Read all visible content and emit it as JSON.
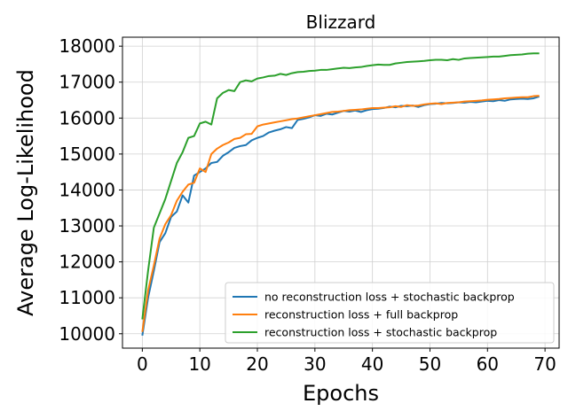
{
  "chart_data": {
    "type": "line",
    "title": "Blizzard",
    "xlabel": "Epochs",
    "ylabel": "Average Log-Likelihood",
    "xlim": [
      -3.45,
      72.45
    ],
    "ylim": [
      9600,
      18250
    ],
    "xticks": [
      0,
      10,
      20,
      30,
      40,
      50,
      60,
      70
    ],
    "yticks": [
      10000,
      11000,
      12000,
      13000,
      14000,
      15000,
      16000,
      17000,
      18000
    ],
    "grid": true,
    "legend_position": "lower-right",
    "x": [
      0,
      1,
      2,
      3,
      4,
      5,
      6,
      7,
      8,
      9,
      10,
      11,
      12,
      13,
      14,
      15,
      16,
      17,
      18,
      19,
      20,
      21,
      22,
      23,
      24,
      25,
      26,
      27,
      28,
      29,
      30,
      31,
      32,
      33,
      34,
      35,
      36,
      37,
      38,
      39,
      40,
      41,
      42,
      43,
      44,
      45,
      46,
      47,
      48,
      49,
      50,
      51,
      52,
      53,
      54,
      55,
      56,
      57,
      58,
      59,
      60,
      61,
      62,
      63,
      64,
      65,
      66,
      67,
      68,
      69
    ],
    "series": [
      {
        "name": "no reconstruction loss + stochastic backprop",
        "color": "#1f77b4",
        "values": [
          9950,
          11000,
          11750,
          12550,
          12800,
          13250,
          13400,
          13850,
          13650,
          14400,
          14500,
          14600,
          14750,
          14780,
          14950,
          15050,
          15170,
          15220,
          15250,
          15380,
          15450,
          15500,
          15600,
          15650,
          15690,
          15750,
          15720,
          15950,
          15980,
          16020,
          16080,
          16060,
          16120,
          16100,
          16150,
          16200,
          16180,
          16210,
          16170,
          16220,
          16250,
          16260,
          16280,
          16320,
          16300,
          16340,
          16330,
          16350,
          16310,
          16360,
          16390,
          16400,
          16420,
          16410,
          16420,
          16440,
          16430,
          16450,
          16440,
          16460,
          16480,
          16470,
          16500,
          16480,
          16520,
          16530,
          16540,
          16530,
          16550,
          16600
        ]
      },
      {
        "name": "reconstruction loss + full backprop",
        "color": "#ff7f0e",
        "values": [
          10050,
          11200,
          11900,
          12650,
          13050,
          13300,
          13700,
          13950,
          14150,
          14200,
          14600,
          14500,
          15000,
          15150,
          15250,
          15320,
          15420,
          15450,
          15550,
          15560,
          15770,
          15820,
          15850,
          15880,
          15910,
          15940,
          15970,
          15990,
          16020,
          16050,
          16080,
          16110,
          16140,
          16170,
          16180,
          16200,
          16220,
          16230,
          16240,
          16260,
          16280,
          16280,
          16290,
          16300,
          16330,
          16310,
          16360,
          16340,
          16350,
          16380,
          16400,
          16410,
          16390,
          16420,
          16430,
          16440,
          16460,
          16470,
          16480,
          16490,
          16510,
          16520,
          16530,
          16550,
          16560,
          16570,
          16580,
          16580,
          16610,
          16620
        ]
      },
      {
        "name": "reconstruction loss + stochastic backprop",
        "color": "#2ca02c",
        "values": [
          10400,
          11750,
          12950,
          13350,
          13750,
          14250,
          14750,
          15050,
          15450,
          15500,
          15850,
          15900,
          15820,
          16550,
          16700,
          16780,
          16750,
          17000,
          17050,
          17020,
          17100,
          17130,
          17170,
          17180,
          17230,
          17200,
          17250,
          17280,
          17290,
          17310,
          17320,
          17340,
          17340,
          17360,
          17380,
          17400,
          17390,
          17410,
          17420,
          17450,
          17470,
          17490,
          17480,
          17480,
          17520,
          17540,
          17560,
          17570,
          17580,
          17590,
          17610,
          17620,
          17620,
          17610,
          17640,
          17620,
          17660,
          17670,
          17680,
          17690,
          17700,
          17710,
          17710,
          17730,
          17750,
          17760,
          17770,
          17790,
          17800,
          17800
        ]
      }
    ]
  }
}
